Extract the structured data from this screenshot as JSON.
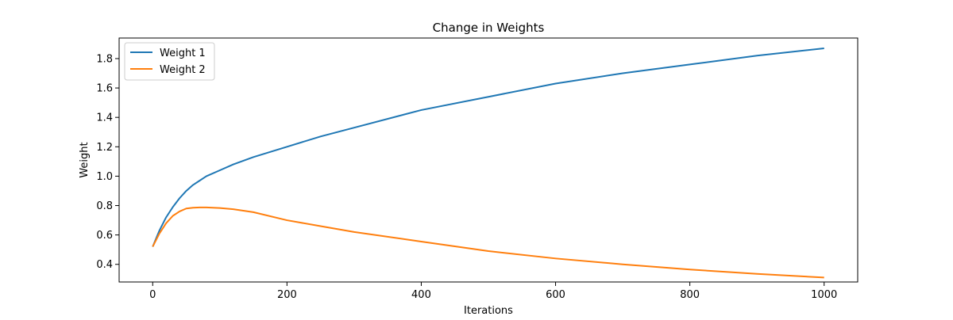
{
  "chart_data": {
    "type": "line",
    "title": "Change in Weights",
    "xlabel": "Iterations",
    "ylabel": "Weight",
    "xlim": [
      -50,
      1050
    ],
    "ylim": [
      0.28,
      1.94
    ],
    "xticks": [
      0,
      200,
      400,
      600,
      800,
      1000
    ],
    "yticks": [
      0.4,
      0.6,
      0.8,
      1.0,
      1.2,
      1.4,
      1.6,
      1.8
    ],
    "xtick_labels": [
      "0",
      "200",
      "400",
      "600",
      "800",
      "1000"
    ],
    "ytick_labels": [
      "0.4",
      "0.6",
      "0.8",
      "1.0",
      "1.2",
      "1.4",
      "1.6",
      "1.8"
    ],
    "grid": false,
    "legend_position": "top-left",
    "series": [
      {
        "name": "Weight 1",
        "color": "#1f77b4",
        "x": [
          0,
          10,
          20,
          30,
          40,
          50,
          60,
          70,
          80,
          100,
          120,
          150,
          200,
          250,
          300,
          400,
          500,
          600,
          700,
          800,
          900,
          1000
        ],
        "y": [
          0.52,
          0.63,
          0.72,
          0.79,
          0.85,
          0.9,
          0.94,
          0.97,
          1.0,
          1.04,
          1.08,
          1.13,
          1.2,
          1.27,
          1.33,
          1.45,
          1.54,
          1.63,
          1.7,
          1.76,
          1.82,
          1.87
        ]
      },
      {
        "name": "Weight 2",
        "color": "#ff7f0e",
        "x": [
          0,
          10,
          20,
          30,
          40,
          50,
          60,
          70,
          80,
          100,
          120,
          150,
          200,
          250,
          300,
          400,
          500,
          600,
          700,
          800,
          900,
          1000
        ],
        "y": [
          0.52,
          0.61,
          0.68,
          0.73,
          0.76,
          0.78,
          0.785,
          0.787,
          0.787,
          0.783,
          0.775,
          0.755,
          0.7,
          0.66,
          0.62,
          0.555,
          0.49,
          0.44,
          0.4,
          0.365,
          0.335,
          0.31
        ]
      }
    ]
  }
}
